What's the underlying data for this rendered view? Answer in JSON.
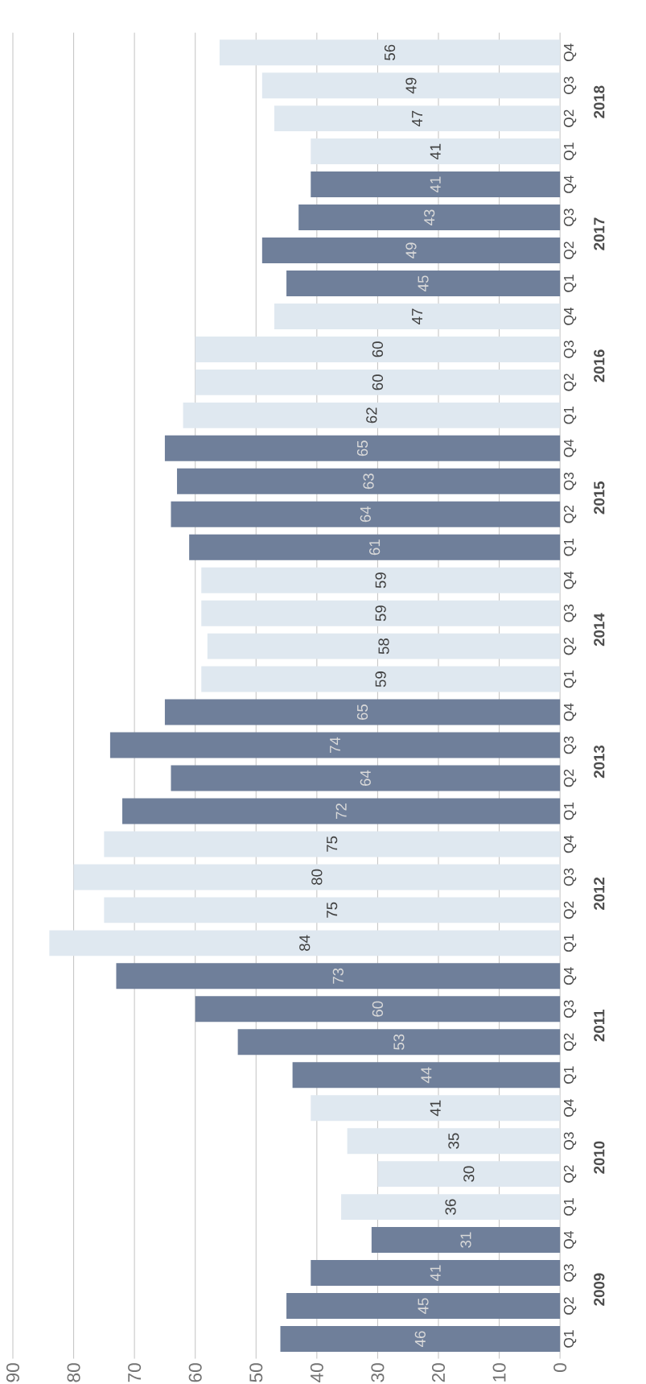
{
  "chart_data": {
    "type": "bar",
    "orientation": "horizontal",
    "categories": [
      "Q4",
      "Q3",
      "Q2",
      "Q1",
      "Q4",
      "Q3",
      "Q2",
      "Q1",
      "Q4",
      "Q3",
      "Q2",
      "Q1",
      "Q4",
      "Q3",
      "Q2",
      "Q1",
      "Q4",
      "Q3",
      "Q2",
      "Q1",
      "Q4",
      "Q3",
      "Q2",
      "Q1",
      "Q4",
      "Q3",
      "Q2",
      "Q1",
      "Q4",
      "Q3",
      "Q2",
      "Q1",
      "Q4",
      "Q3",
      "Q2",
      "Q1",
      "Q4",
      "Q3",
      "Q2",
      "Q1"
    ],
    "values": [
      56,
      49,
      47,
      41,
      41,
      43,
      49,
      45,
      47,
      60,
      60,
      62,
      65,
      63,
      64,
      61,
      59,
      59,
      58,
      59,
      65,
      74,
      64,
      72,
      75,
      80,
      75,
      84,
      73,
      60,
      53,
      44,
      41,
      35,
      30,
      36,
      31,
      41,
      45,
      46
    ],
    "colors": [
      "#dfe8f0",
      "#dfe8f0",
      "#dfe8f0",
      "#dfe8f0",
      "#6f7f9a",
      "#6f7f9a",
      "#6f7f9a",
      "#6f7f9a",
      "#dfe8f0",
      "#dfe8f0",
      "#dfe8f0",
      "#dfe8f0",
      "#6f7f9a",
      "#6f7f9a",
      "#6f7f9a",
      "#6f7f9a",
      "#dfe8f0",
      "#dfe8f0",
      "#dfe8f0",
      "#dfe8f0",
      "#6f7f9a",
      "#6f7f9a",
      "#6f7f9a",
      "#6f7f9a",
      "#dfe8f0",
      "#dfe8f0",
      "#dfe8f0",
      "#dfe8f0",
      "#6f7f9a",
      "#6f7f9a",
      "#6f7f9a",
      "#6f7f9a",
      "#dfe8f0",
      "#dfe8f0",
      "#dfe8f0",
      "#dfe8f0",
      "#6f7f9a",
      "#6f7f9a",
      "#6f7f9a",
      "#6f7f9a"
    ],
    "annotations": [
      "2018",
      "2017",
      "2016",
      "2015",
      "2014",
      "2013",
      "2012",
      "2011",
      "2010",
      "2009"
    ],
    "xlim": [
      90,
      0
    ],
    "xticks": [
      90,
      80,
      70,
      60,
      50,
      40,
      30,
      20,
      10,
      0
    ],
    "grid": "x",
    "data_labels": true
  }
}
